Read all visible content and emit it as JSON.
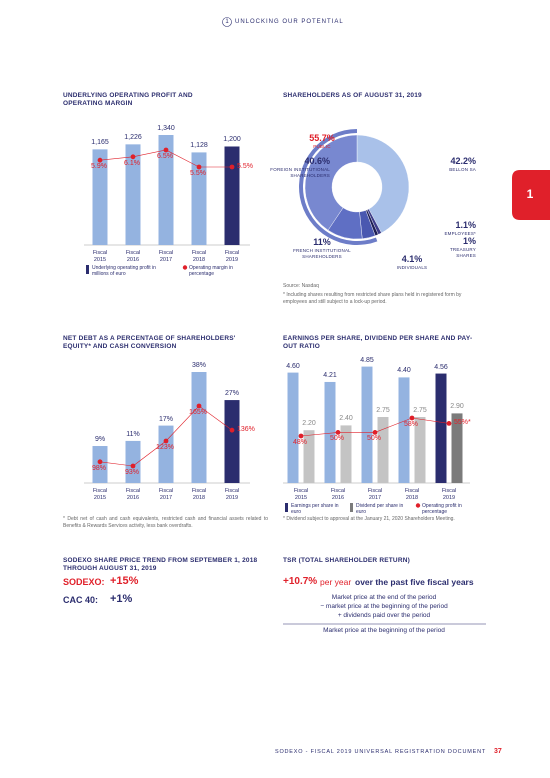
{
  "header": {
    "number": "1",
    "title": "UNLOCKING OUR POTENTIAL"
  },
  "side_tab": "1",
  "chart_data": [
    {
      "type": "bar_line",
      "title": "UNDERLYING OPERATING PROFIT AND OPERATING MARGIN",
      "categories": [
        "Fiscal 2015",
        "Fiscal 2016",
        "Fiscal 2017",
        "Fiscal 2018",
        "Fiscal 2019"
      ],
      "series": [
        {
          "name": "Underlying operating profit in millions of euro",
          "type": "bar",
          "colors": [
            "#94b3e0",
            "#94b3e0",
            "#94b3e0",
            "#94b3e0",
            "#2b2d6e"
          ],
          "values": [
            1165,
            1226,
            1340,
            1128,
            1200
          ],
          "value_labels": [
            "1,165",
            "1,226",
            "1,340",
            "1,128",
            "1,200"
          ]
        },
        {
          "name": "Operating margin in percentage",
          "type": "line",
          "color": "#e0202a",
          "values": [
            5.9,
            6.1,
            6.5,
            5.5,
            5.5
          ],
          "value_labels": [
            "5.9%",
            "6.1%",
            "6.5%",
            "5.5%",
            "5.5%"
          ]
        }
      ]
    },
    {
      "type": "donut",
      "title": "SHAREHOLDERS AS OF AUGUST 31, 2019",
      "categories": [
        "BELLON SA",
        "EMPLOYEES*",
        "TREASURY SHARES",
        "INDIVIDUALS",
        "FRENCH INSTITUTIONAL SHAREHOLDERS",
        "FOREIGN INSTITUTIONAL SHAREHOLDERS"
      ],
      "values": [
        42.2,
        1.1,
        1,
        4.1,
        11,
        40.6
      ],
      "value_labels": [
        "42.2%",
        "1.1%",
        "1%",
        "4.1%",
        "11%",
        "40.6%"
      ],
      "colors": [
        "#a9c1e9",
        "#3d3d8a",
        "#1f1f55",
        "#4a58b0",
        "#5f6fc4",
        "#7888d0"
      ],
      "annotation": {
        "label": "PUBLIC",
        "value": 55.7,
        "value_label": "55.7%",
        "color": "#6d7dc8"
      },
      "source": "Source: Nasdaq",
      "footnote": "* Including shares resulting from restricted share plans held in registered form by employees and still subject to a lock-up period."
    },
    {
      "type": "bar_line",
      "title": "NET DEBT AS A PERCENTAGE OF SHAREHOLDERS' EQUITY* AND CASH CONVERSION",
      "categories": [
        "Fiscal 2015",
        "Fiscal 2016",
        "Fiscal 2017",
        "Fiscal 2018",
        "Fiscal 2019"
      ],
      "series": [
        {
          "type": "bar",
          "colors": [
            "#94b3e0",
            "#94b3e0",
            "#94b3e0",
            "#94b3e0",
            "#2b2d6e"
          ],
          "values": [
            9,
            11,
            17,
            38,
            27
          ],
          "value_labels": [
            "9%",
            "11%",
            "17%",
            "38%",
            "27%"
          ]
        },
        {
          "type": "line",
          "color": "#e0202a",
          "values": [
            98,
            93,
            123,
            165,
            136
          ],
          "value_labels": [
            "98%",
            "93%",
            "123%",
            "165%",
            "136%"
          ]
        }
      ],
      "footnote": "* Debt net of cash and cash equivalents, restricted cash and financial assets related to Benefits & Rewards Services activity, less bank overdrafts."
    },
    {
      "type": "grouped_bar_line",
      "title": "EARNINGS PER SHARE, DIVIDEND PER SHARE AND PAY-OUT RATIO",
      "categories": [
        "Fiscal 2015",
        "Fiscal 2016",
        "Fiscal 2017",
        "Fiscal 2018",
        "Fiscal 2019"
      ],
      "series": [
        {
          "name": "Earnings per share in euro",
          "type": "bar",
          "colors": [
            "#94b3e0",
            "#94b3e0",
            "#94b3e0",
            "#94b3e0",
            "#2b2d6e"
          ],
          "values": [
            4.6,
            4.21,
            4.85,
            4.4,
            4.56
          ],
          "value_labels": [
            "4.60",
            "4.21",
            "4.85",
            "4.40",
            "4.56"
          ]
        },
        {
          "name": "Dividend per share in euro",
          "type": "bar",
          "colors": [
            "#c4c4c4",
            "#c4c4c4",
            "#c4c4c4",
            "#c4c4c4",
            "#7b7b7b"
          ],
          "values": [
            2.2,
            2.4,
            2.75,
            2.75,
            2.9
          ],
          "value_labels": [
            "2.20",
            "2.40",
            "2.75",
            "2.75",
            "2.90"
          ]
        },
        {
          "name": "Operating profit in percentage",
          "type": "line",
          "color": "#e0202a",
          "values": [
            48,
            50,
            50,
            58,
            55
          ],
          "value_labels": [
            "48%",
            "50%",
            "50%",
            "58%",
            "55%*"
          ]
        }
      ],
      "footnote": "* Dividend subject to approval at the January 21, 2020 Shareholders Meeting."
    }
  ],
  "share_price": {
    "title": "SODEXO SHARE PRICE TREND FROM SEPTEMBER 1, 2018 THROUGH AUGUST 31, 2019",
    "sodexo_label": "SODEXO:",
    "sodexo_value": "+15%",
    "cac_label": "CAC 40:",
    "cac_value": "+1%"
  },
  "tsr": {
    "title": "TSR (TOTAL SHAREHOLDER RETURN)",
    "value": "+10.7%",
    "per_year": "per year",
    "period": "over the past five fiscal years",
    "numerator": [
      "Market price at the end of the period",
      "− market price at the beginning of the period",
      "+ dividends paid over the period"
    ],
    "denominator": "Market price at the beginning of the period"
  },
  "footer": {
    "text": "SODEXO - FISCAL 2019 UNIVERSAL REGISTRATION DOCUMENT",
    "page": "37"
  }
}
